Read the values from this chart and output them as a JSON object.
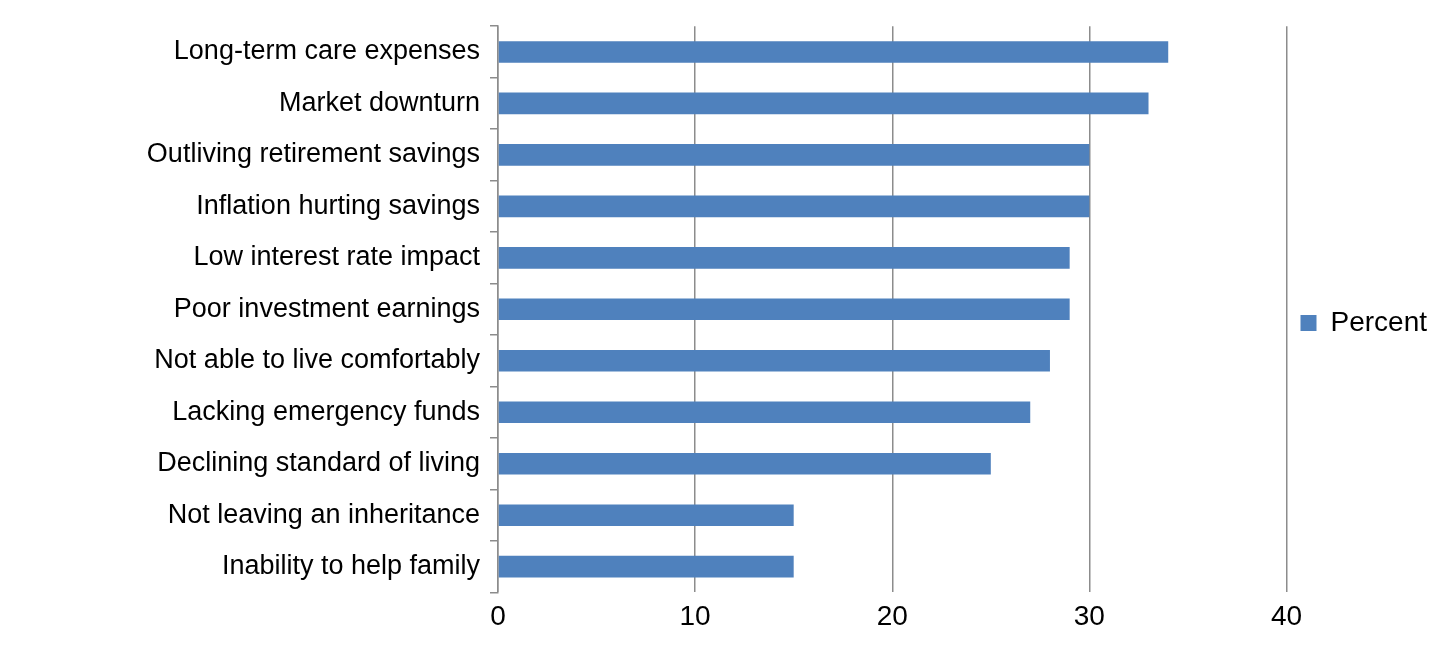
{
  "chart_data": {
    "type": "bar",
    "orientation": "horizontal",
    "categories": [
      "Long-term care expenses",
      "Market downturn",
      "Outliving retirement savings",
      "Inflation hurting savings",
      "Low interest rate impact",
      "Poor investment earnings",
      "Not able to live comfortably",
      "Lacking emergency funds",
      "Declining standard of living",
      "Not leaving an inheritance",
      "Inability to help family"
    ],
    "series": [
      {
        "name": "Percent",
        "color": "#4f81bd",
        "values": [
          34,
          33,
          30,
          30,
          29,
          29,
          28,
          27,
          25,
          15,
          15
        ]
      }
    ],
    "xlim": [
      0,
      40
    ],
    "xticks": [
      0,
      10,
      20,
      30,
      40
    ],
    "grid": "x",
    "legend": "right"
  }
}
